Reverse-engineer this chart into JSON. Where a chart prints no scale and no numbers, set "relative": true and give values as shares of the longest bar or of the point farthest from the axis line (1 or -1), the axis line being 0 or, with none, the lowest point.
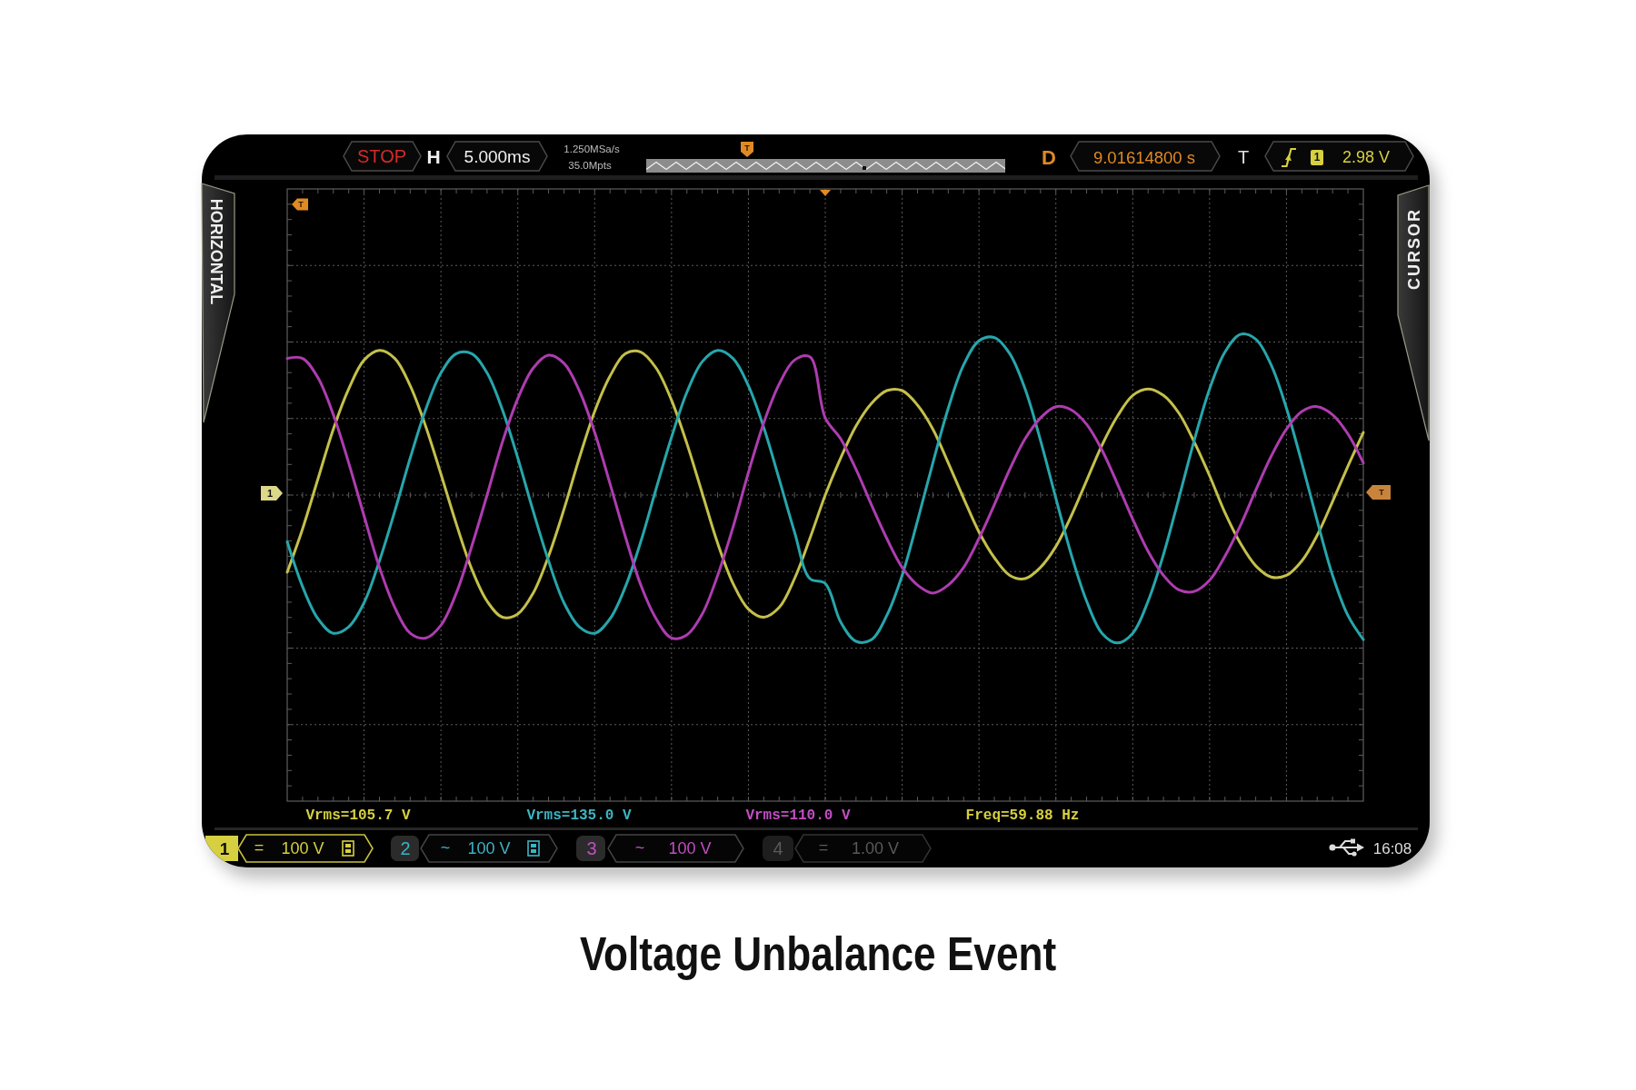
{
  "chart_data": {
    "type": "line",
    "title": "Voltage Unbalance Event",
    "relative": true,
    "grid": true,
    "categories": [
      null,
      null,
      null,
      null,
      null,
      null,
      null,
      null,
      null,
      null,
      null,
      null,
      null,
      null,
      null,
      null,
      null,
      null,
      null,
      null,
      null,
      null,
      null,
      null,
      null,
      null,
      null,
      null,
      null,
      null,
      null,
      null,
      null,
      null,
      null,
      null,
      null,
      null,
      null,
      null,
      null,
      null,
      null,
      null,
      null,
      null,
      null,
      null,
      null,
      null,
      null,
      null,
      null,
      null,
      null,
      null,
      null,
      null,
      null,
      null,
      null,
      null,
      null,
      null,
      null,
      null,
      null,
      null,
      null,
      null,
      null
    ],
    "series": [
      {
        "color": "#c4c04a",
        "values": [
          -0.48,
          -0.21,
          0.1,
          0.41,
          0.66,
          0.84,
          0.9,
          0.85,
          0.68,
          0.43,
          0.13,
          -0.18,
          -0.46,
          -0.66,
          -0.76,
          -0.74,
          -0.61,
          -0.38,
          -0.09,
          0.23,
          0.52,
          0.74,
          0.88,
          0.89,
          0.79,
          0.59,
          0.32,
          0.01,
          -0.3,
          -0.55,
          -0.71,
          -0.76,
          -0.7,
          -0.52,
          -0.27,
          0.0,
          0.23,
          0.43,
          0.57,
          0.65,
          0.65,
          0.56,
          0.41,
          0.2,
          -0.02,
          -0.23,
          -0.39,
          -0.5,
          -0.52,
          -0.45,
          -0.32,
          -0.13,
          0.09,
          0.31,
          0.49,
          0.62,
          0.66,
          0.62,
          0.51,
          0.33,
          0.12,
          -0.11,
          -0.3,
          -0.44,
          -0.51,
          -0.5,
          -0.41,
          -0.25,
          -0.04,
          0.18,
          0.39
        ]
      },
      {
        "color": "#26a6ac",
        "values": [
          -0.29,
          -0.57,
          -0.77,
          -0.86,
          -0.82,
          -0.67,
          -0.41,
          -0.1,
          0.23,
          0.53,
          0.76,
          0.88,
          0.88,
          0.76,
          0.53,
          0.23,
          -0.1,
          -0.41,
          -0.67,
          -0.82,
          -0.86,
          -0.77,
          -0.57,
          -0.29,
          0.04,
          0.36,
          0.64,
          0.83,
          0.9,
          0.85,
          0.68,
          0.42,
          0.1,
          -0.23,
          -0.52,
          -0.55,
          -0.79,
          -0.91,
          -0.9,
          -0.75,
          -0.5,
          -0.16,
          0.2,
          0.54,
          0.81,
          0.96,
          0.98,
          0.88,
          0.66,
          0.34,
          -0.02,
          -0.37,
          -0.66,
          -0.86,
          -0.92,
          -0.86,
          -0.66,
          -0.37,
          -0.02,
          0.34,
          0.66,
          0.89,
          1.0,
          0.97,
          0.81,
          0.54,
          0.2,
          -0.16,
          -0.5,
          -0.75,
          -0.9
        ]
      },
      {
        "color": "#ae3cb0",
        "values": [
          0.85,
          0.85,
          0.73,
          0.5,
          0.2,
          -0.13,
          -0.45,
          -0.7,
          -0.86,
          -0.89,
          -0.81,
          -0.61,
          -0.32,
          0.0,
          0.33,
          0.6,
          0.79,
          0.87,
          0.82,
          0.65,
          0.39,
          0.07,
          -0.26,
          -0.56,
          -0.77,
          -0.89,
          -0.87,
          -0.74,
          -0.5,
          -0.2,
          0.14,
          0.45,
          0.69,
          0.84,
          0.86,
          0.48,
          0.35,
          0.16,
          -0.06,
          -0.27,
          -0.45,
          -0.56,
          -0.61,
          -0.56,
          -0.45,
          -0.27,
          -0.06,
          0.16,
          0.35,
          0.48,
          0.55,
          0.53,
          0.44,
          0.28,
          0.07,
          -0.15,
          -0.35,
          -0.5,
          -0.59,
          -0.6,
          -0.53,
          -0.38,
          -0.19,
          0.03,
          0.24,
          0.41,
          0.52,
          0.55,
          0.5,
          0.38,
          0.2
        ]
      }
    ],
    "annotations": [
      "STOP",
      "H",
      "5.000ms",
      "1.250MSa/s",
      "35.0Mpts",
      "T",
      "D",
      "9.01614800 s",
      "T",
      "1",
      "2.98 V",
      "HORIZONTAL",
      "CURSOR",
      "T",
      "1",
      "T",
      "Vrms=105.7 V",
      "Vrms=135.0 V",
      "Vrms=110.0 V",
      "Freq=59.88 Hz",
      "1",
      "=",
      "100 V",
      "2",
      "~",
      "100 V",
      "3",
      "~",
      "100 V",
      "4",
      "=",
      "1.00 V",
      "16:08"
    ]
  }
}
